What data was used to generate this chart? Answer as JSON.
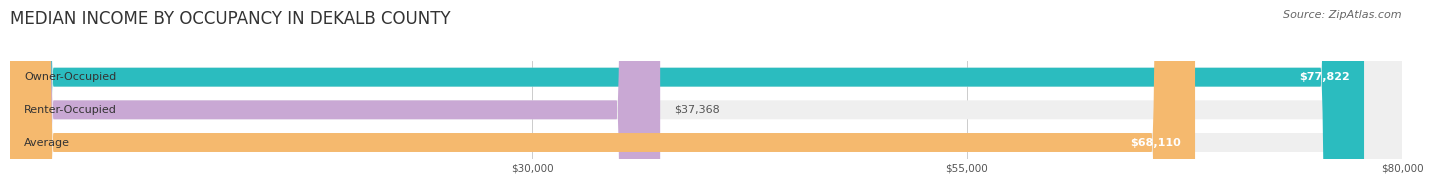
{
  "title": "MEDIAN INCOME BY OCCUPANCY IN DEKALB COUNTY",
  "source": "Source: ZipAtlas.com",
  "categories": [
    "Owner-Occupied",
    "Renter-Occupied",
    "Average"
  ],
  "values": [
    77822,
    37368,
    68110
  ],
  "bar_colors": [
    "#2bbcbf",
    "#c9a8d4",
    "#f5b96e"
  ],
  "bar_bg_color": "#efefef",
  "label_colors": [
    "#ffffff",
    "#555555",
    "#ffffff"
  ],
  "value_labels": [
    "$77,822",
    "$37,368",
    "$68,110"
  ],
  "xlim": [
    0,
    80000
  ],
  "xticks": [
    30000,
    55000,
    80000
  ],
  "xtick_labels": [
    "$30,000",
    "$55,000",
    "$80,000"
  ],
  "title_fontsize": 12,
  "source_fontsize": 8,
  "bar_label_fontsize": 8,
  "value_label_fontsize": 8,
  "background_color": "#ffffff",
  "bar_height": 0.58
}
